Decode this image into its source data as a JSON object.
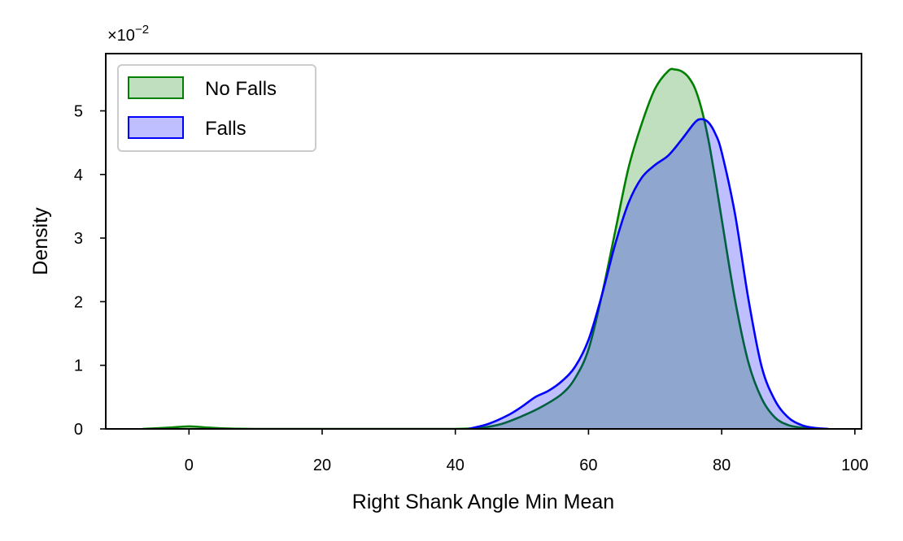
{
  "chart_data": {
    "type": "area",
    "title": "",
    "xlabel": "Right Shank Angle Min Mean",
    "ylabel": "Density",
    "xlim": [
      -12.5,
      101
    ],
    "ylim": [
      0,
      0.059
    ],
    "x_ticks": [
      0,
      20,
      40,
      60,
      80,
      100
    ],
    "x_tick_labels": [
      "0",
      "20",
      "40",
      "60",
      "80",
      "100"
    ],
    "y_ticks": [
      0,
      0.01,
      0.02,
      0.03,
      0.04,
      0.05
    ],
    "y_tick_labels": [
      "0",
      "1",
      "2",
      "3",
      "4",
      "5"
    ],
    "y_offset_text": {
      "base": "×10",
      "exponent": "−2"
    },
    "grid": false,
    "legend_position": "upper-left",
    "series": [
      {
        "name": "No Falls",
        "color": "#008000",
        "x": [
          -7,
          -3,
          0,
          3,
          6,
          10,
          20,
          30,
          40,
          44,
          47,
          50,
          53,
          56,
          58,
          60,
          62,
          64,
          66,
          68,
          70,
          72,
          73,
          74,
          75,
          76,
          77,
          78,
          79,
          80,
          82,
          84,
          86,
          88,
          90,
          92,
          94,
          96
        ],
        "y": [
          0,
          0.0002,
          0.0004,
          0.0002,
          5e-05,
          0,
          0,
          0,
          0,
          0.0002,
          0.0008,
          0.002,
          0.0035,
          0.0055,
          0.008,
          0.0125,
          0.021,
          0.031,
          0.041,
          0.048,
          0.0535,
          0.0563,
          0.0565,
          0.0562,
          0.0553,
          0.0535,
          0.0502,
          0.0455,
          0.0395,
          0.033,
          0.0203,
          0.0105,
          0.0048,
          0.0018,
          0.0006,
          0.0002,
          5e-05,
          0
        ]
      },
      {
        "name": "Falls",
        "color": "#0000ff",
        "x": [
          42,
          45,
          48,
          50,
          52,
          54,
          56,
          58,
          60,
          62,
          64,
          66,
          68,
          70,
          72,
          74,
          76,
          77,
          78,
          79,
          80,
          82,
          84,
          86,
          88,
          90,
          92,
          94,
          96
        ],
        "y": [
          0,
          0.0008,
          0.0022,
          0.0035,
          0.005,
          0.006,
          0.0075,
          0.0098,
          0.014,
          0.021,
          0.029,
          0.0355,
          0.0395,
          0.0415,
          0.043,
          0.0455,
          0.0482,
          0.0487,
          0.0482,
          0.0465,
          0.0435,
          0.0338,
          0.0205,
          0.0098,
          0.0045,
          0.0018,
          0.0006,
          0.00015,
          0
        ]
      }
    ]
  }
}
